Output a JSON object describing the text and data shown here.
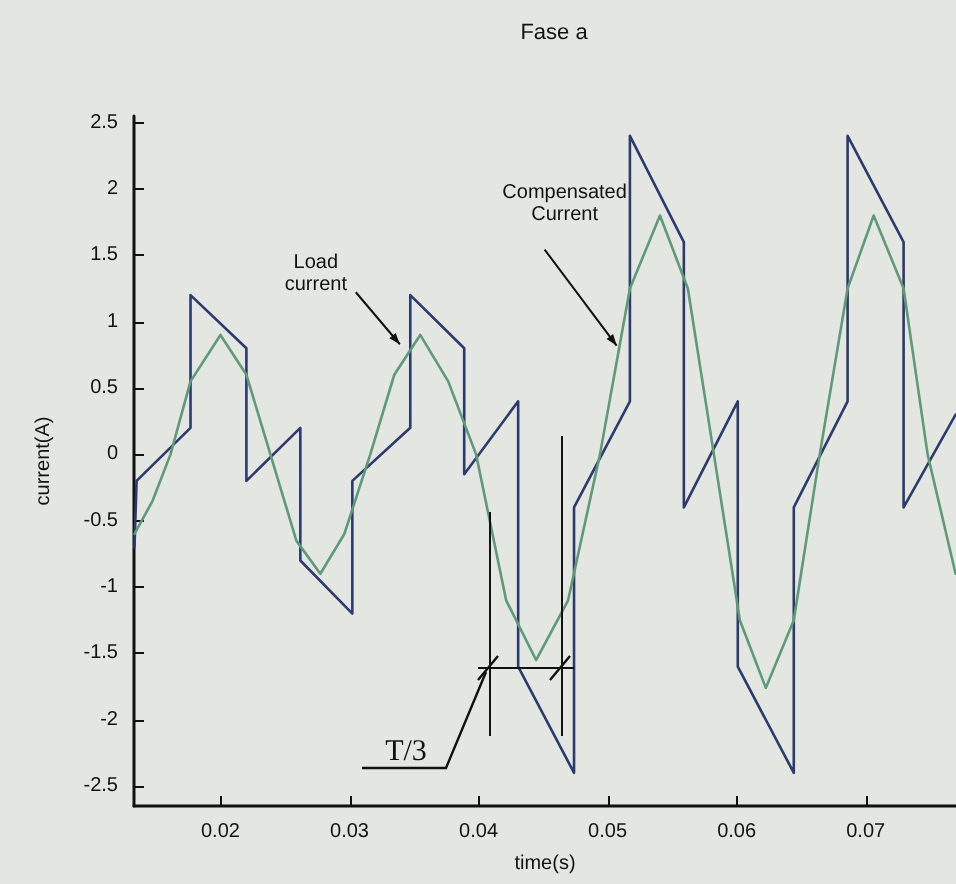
{
  "chart_data": {
    "type": "line",
    "title": "Fase a",
    "xlabel": "time(s)",
    "ylabel": "current(A)",
    "xlim": [
      0.0133,
      0.077
    ],
    "xticks": [
      0.02,
      0.03,
      0.04,
      0.05,
      0.06,
      0.07
    ],
    "ylim": [
      -2.65,
      2.55
    ],
    "yticks": [
      -2.5,
      -2,
      -1.5,
      -1,
      -0.5,
      0,
      0.5,
      1,
      1.5,
      2,
      2.5
    ],
    "marker": "none",
    "line_style": "solid",
    "annotations": [
      {
        "text": "Load current",
        "x": 0.0339,
        "y": 0.83
      },
      {
        "text": "Compensated Current",
        "x": 0.0507,
        "y": 0.82
      },
      "T/3"
    ],
    "series": [
      {
        "color": "#2c3a6e",
        "x": [
          0.01334,
          0.0135,
          0.01768,
          0.01768,
          0.02201,
          0.02201,
          0.02619,
          0.02619,
          0.03022,
          0.03022,
          0.03471,
          0.03471,
          0.03889,
          0.03889,
          0.04307,
          0.04307,
          0.0474,
          0.0474,
          0.05173,
          0.05173,
          0.05591,
          0.05591,
          0.06009,
          0.06009,
          0.06443,
          0.06443,
          0.0686,
          0.0686,
          0.07294,
          0.07294,
          0.07697
        ],
        "values": [
          -0.7,
          -0.2,
          0.2,
          1.2,
          0.8,
          -0.2,
          0.2,
          -0.8,
          -1.2,
          -0.2,
          0.2,
          1.2,
          0.8,
          -0.15,
          0.4,
          -1.6,
          -2.4,
          -0.4,
          0.4,
          2.4,
          1.6,
          -0.4,
          0.4,
          -1.6,
          -2.4,
          -0.4,
          0.4,
          2.4,
          1.6,
          -0.4,
          0.3
        ]
      },
      {
        "color": "#5f9a78",
        "x": [
          0.01334,
          0.01474,
          0.01613,
          0.01768,
          0.02,
          0.02201,
          0.02387,
          0.02588,
          0.02774,
          0.0296,
          0.03161,
          0.03347,
          0.03548,
          0.03765,
          0.03981,
          0.04214,
          0.04446,
          0.04694,
          0.04941,
          0.05173,
          0.05406,
          0.05622,
          0.05824,
          0.06025,
          0.06226,
          0.06443,
          0.06644,
          0.0686,
          0.07062,
          0.07294,
          0.0748,
          0.07697
        ],
        "values": [
          -0.6,
          -0.35,
          0,
          0.55,
          0.9,
          0.6,
          0,
          -0.65,
          -0.9,
          -0.6,
          0,
          0.6,
          0.9,
          0.55,
          0,
          -1.1,
          -1.55,
          -1.1,
          0,
          1.25,
          1.8,
          1.25,
          0,
          -1.25,
          -1.76,
          -1.25,
          0,
          1.25,
          1.8,
          1.25,
          0,
          -0.9
        ]
      }
    ]
  }
}
